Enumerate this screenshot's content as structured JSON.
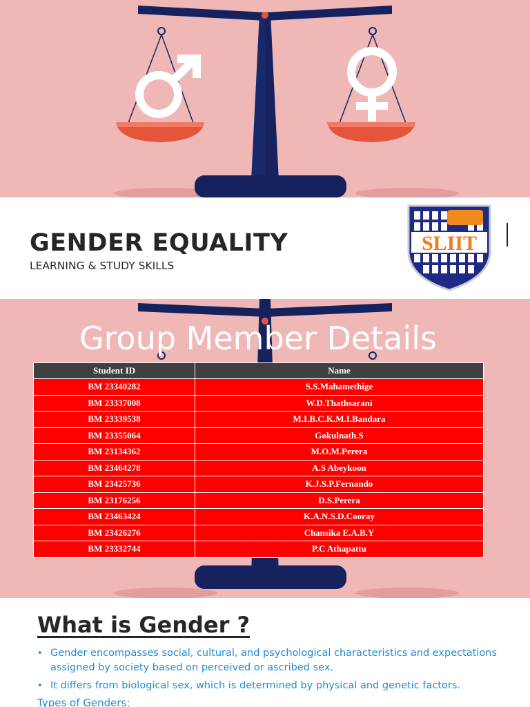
{
  "slide1": {
    "title": "GENDER EQUALITY",
    "subtitle": "LEARNING & STUDY SKILLS",
    "logo_text": "SLIIT",
    "icons": [
      "balance-scale-icon",
      "male-symbol-icon",
      "female-symbol-icon"
    ],
    "colors": {
      "background": "#efb8b7",
      "scale": "#15225e",
      "pans": "#e6553a"
    }
  },
  "slide2": {
    "title": "Group Member Details",
    "table": {
      "headers": [
        "Student ID",
        "Name"
      ],
      "rows": [
        [
          "BM 23340282",
          "S.S.Mahamethige"
        ],
        [
          "BM 23337008",
          "W.D.Thathsarani"
        ],
        [
          "BM 23339538",
          "M.I.B.C.K.M.I.Bandara"
        ],
        [
          "BM 23355064",
          "Gokulnath.S"
        ],
        [
          "BM 23134362",
          "M.O.M.Perera"
        ],
        [
          "BM 23464278",
          "A.S Abeykoon"
        ],
        [
          "BM 23425736",
          "K.J.S.P.Fernando"
        ],
        [
          "BM 23176256",
          "D.S.Perera"
        ],
        [
          "BM 23463424",
          "K.A.N.S.D.Cooray"
        ],
        [
          "BM 23426276",
          "Chansika E.A.B.Y"
        ],
        [
          "BM 23332744",
          "P.C Athapattu"
        ]
      ]
    },
    "colors": {
      "header": "#404040",
      "row": "#ff0000"
    }
  },
  "slide3": {
    "title": "What is Gender ?",
    "bullets": [
      "Gender encompasses social, cultural, and psychological characteristics and expectations assigned by society based on perceived or ascribed sex.",
      "It differs from biological sex, which is determined by physical and genetic factors."
    ],
    "types_label": "Types of Genders:",
    "colors": {
      "bullet_text": "#1f8ad6"
    }
  }
}
